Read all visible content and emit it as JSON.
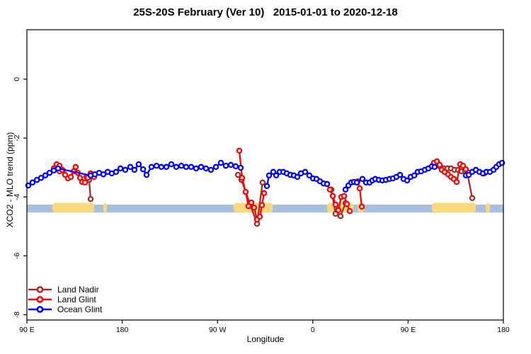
{
  "chart_data": {
    "type": "line",
    "title": "25S-20S February (Ver 10)   2015-01-01 to 2020-12-18",
    "xlabel": "Longitude",
    "ylabel": "XCO2 - MLO trend (ppm)",
    "x_axis": {
      "min": 0,
      "max": 450,
      "unit": "degrees eastward from 90E (axis wraps past the dateline and prime meridian)",
      "ticks": [
        {
          "pos": 0,
          "label": "90 E"
        },
        {
          "pos": 90,
          "label": "180"
        },
        {
          "pos": 180,
          "label": "90 W"
        },
        {
          "pos": 270,
          "label": "0"
        },
        {
          "pos": 360,
          "label": "90 E"
        },
        {
          "pos": 450,
          "label": "180"
        }
      ]
    },
    "y_axis": {
      "min": -8.18,
      "max": 1.68,
      "ticks": [
        {
          "v": 0,
          "label": "0"
        },
        {
          "v": -2,
          "label": "-2"
        },
        {
          "v": -4,
          "label": "-4"
        },
        {
          "v": -6,
          "label": "-6"
        },
        {
          "v": -8,
          "label": "-8"
        }
      ]
    },
    "surface_band": {
      "ocean_color": "#A8C0DF",
      "land_color": "#F8DA7E",
      "y_top": -4.26,
      "y_bottom": -4.53,
      "land_y_top": -4.2,
      "land_segments_deg": [
        [
          24.1,
          63.5
        ],
        [
          72.2,
          75.6
        ],
        [
          195.2,
          232.0
        ],
        [
          283.5,
          308.3
        ],
        [
          312.3,
          318.3
        ],
        [
          382.5,
          424.0
        ],
        [
          433.3,
          437.3
        ]
      ]
    },
    "series": [
      {
        "name": "Land Nadir",
        "color": "#A52A2A",
        "segments": [
          [
            [
              30.8,
              -3.13
            ],
            [
              34.1,
              -3.1
            ]
          ],
          [
            [
              56.2,
              -3.32
            ],
            [
              58.8,
              -3.42
            ],
            [
              60.2,
              -4.07
            ]
          ],
          [
            [
              199.3,
              -3.25
            ],
            [
              202.6,
              -3.42
            ],
            [
              217.3,
              -4.91
            ],
            [
              222.6,
              -3.51
            ]
          ],
          [
            [
              287.5,
              -3.75
            ],
            [
              291.5,
              -4.57
            ],
            [
              296.2,
              -4.65
            ],
            [
              300.9,
              -4.21
            ]
          ],
          [
            [
              390.5,
              -2.98
            ],
            [
              393.8,
              -3.03
            ],
            [
              397.2,
              -3.03
            ],
            [
              400.5,
              -3.03
            ],
            [
              403.8,
              -3.08
            ],
            [
              407.2,
              -3.08
            ],
            [
              410.5,
              -3.13
            ],
            [
              413.9,
              -3.13
            ],
            [
              415.9,
              -3.18
            ],
            [
              420.6,
              -4.04
            ]
          ]
        ]
      },
      {
        "name": "Land Glint",
        "color": "#FF0000",
        "segments": [
          [
            [
              25.4,
              -3.03
            ],
            [
              28.1,
              -2.89
            ],
            [
              30.8,
              -2.94
            ],
            [
              33.4,
              -3.08
            ],
            [
              36.1,
              -3.25
            ],
            [
              38.8,
              -3.37
            ],
            [
              41.5,
              -3.32
            ],
            [
              44.1,
              -3.13
            ],
            [
              46.1,
              -2.98
            ],
            [
              48.1,
              -3.18
            ],
            [
              50.2,
              -3.35
            ],
            [
              52.2,
              -3.49
            ],
            [
              54.8,
              -3.51
            ],
            [
              57.5,
              -3.35
            ],
            [
              60.2,
              -3.2
            ],
            [
              63.5,
              -3.32
            ]
          ],
          [
            [
              200.6,
              -2.43
            ],
            [
              203.3,
              -3.35
            ],
            [
              206.6,
              -3.83
            ],
            [
              209.3,
              -4.31
            ],
            [
              212.0,
              -4.19
            ],
            [
              214.6,
              -4.36
            ],
            [
              217.3,
              -4.77
            ],
            [
              220.0,
              -4.67
            ],
            [
              222.0,
              -4.28
            ],
            [
              224.0,
              -3.87
            ]
          ],
          [
            [
              283.5,
              -3.56
            ],
            [
              286.2,
              -3.75
            ],
            [
              288.9,
              -3.97
            ],
            [
              291.5,
              -4.26
            ],
            [
              294.2,
              -4.45
            ],
            [
              296.9,
              -4.0
            ],
            [
              299.6,
              -3.97
            ],
            [
              302.2,
              -4.24
            ],
            [
              304.9,
              -4.48
            ]
          ],
          [
            [
              312.3,
              -3.47
            ],
            [
              314.3,
              -3.71
            ],
            [
              316.3,
              -4.33
            ]
          ],
          [
            [
              384.5,
              -2.84
            ],
            [
              387.2,
              -2.79
            ],
            [
              389.8,
              -2.91
            ],
            [
              391.8,
              -3.08
            ],
            [
              394.5,
              -3.15
            ],
            [
              397.8,
              -3.23
            ],
            [
              400.5,
              -3.32
            ],
            [
              403.2,
              -3.39
            ],
            [
              405.9,
              -3.49
            ],
            [
              409.2,
              -2.89
            ],
            [
              411.9,
              -2.94
            ],
            [
              414.6,
              -3.06
            ],
            [
              417.3,
              -3.18
            ]
          ],
          [
            [
              432.0,
              -3.2
            ]
          ]
        ]
      },
      {
        "name": "Ocean Glint",
        "color": "#0000FF",
        "segments": [
          [
            [
              1.3,
              -3.61
            ],
            [
              5.3,
              -3.51
            ],
            [
              9.4,
              -3.42
            ],
            [
              13.4,
              -3.35
            ],
            [
              17.4,
              -3.27
            ],
            [
              21.4,
              -3.18
            ],
            [
              25.4,
              -3.1
            ],
            [
              29.4,
              -3.03
            ],
            [
              60.2,
              -3.27
            ],
            [
              64.2,
              -3.23
            ],
            [
              68.2,
              -3.18
            ],
            [
              72.2,
              -3.23
            ],
            [
              76.2,
              -3.15
            ],
            [
              80.2,
              -3.2
            ],
            [
              84.2,
              -3.15
            ],
            [
              88.3,
              -3.03
            ],
            [
              92.9,
              -3.08
            ],
            [
              97.6,
              -2.98
            ],
            [
              101.6,
              -3.08
            ],
            [
              105.6,
              -2.89
            ],
            [
              109.7,
              -3.06
            ],
            [
              113.0,
              -3.25
            ],
            [
              117.7,
              -2.98
            ],
            [
              122.4,
              -2.94
            ],
            [
              127.0,
              -2.98
            ],
            [
              131.7,
              -2.98
            ],
            [
              136.4,
              -2.89
            ],
            [
              141.1,
              -2.98
            ],
            [
              145.8,
              -2.94
            ],
            [
              150.4,
              -2.98
            ],
            [
              155.1,
              -2.98
            ],
            [
              159.8,
              -3.03
            ],
            [
              164.5,
              -2.98
            ],
            [
              169.2,
              -3.03
            ],
            [
              173.8,
              -3.08
            ],
            [
              178.5,
              -2.98
            ],
            [
              183.2,
              -2.84
            ],
            [
              187.9,
              -2.94
            ],
            [
              192.6,
              -2.91
            ],
            [
              197.2,
              -2.96
            ],
            [
              201.9,
              -3.01
            ]
          ],
          [
            [
              226.7,
              -3.63
            ],
            [
              228.7,
              -3.27
            ],
            [
              232.7,
              -3.15
            ],
            [
              235.4,
              -3.27
            ],
            [
              238.7,
              -3.15
            ],
            [
              242.1,
              -3.15
            ],
            [
              245.4,
              -3.2
            ],
            [
              248.8,
              -3.25
            ],
            [
              252.1,
              -3.27
            ],
            [
              255.4,
              -3.32
            ],
            [
              258.8,
              -3.2
            ],
            [
              262.8,
              -3.15
            ],
            [
              266.8,
              -3.27
            ],
            [
              270.2,
              -3.37
            ],
            [
              273.5,
              -3.39
            ],
            [
              276.8,
              -3.47
            ],
            [
              280.2,
              -3.54
            ],
            [
              283.5,
              -3.56
            ]
          ],
          [
            [
              300.9,
              -3.75
            ],
            [
              303.6,
              -3.61
            ],
            [
              306.3,
              -3.51
            ],
            [
              308.9,
              -3.49
            ],
            [
              311.6,
              -3.51
            ],
            [
              316.9,
              -3.39
            ],
            [
              320.3,
              -3.51
            ],
            [
              323.6,
              -3.51
            ],
            [
              326.3,
              -3.44
            ],
            [
              329.0,
              -3.39
            ],
            [
              332.3,
              -3.42
            ],
            [
              335.7,
              -3.44
            ],
            [
              339.0,
              -3.42
            ],
            [
              342.4,
              -3.39
            ],
            [
              345.7,
              -3.37
            ],
            [
              349.0,
              -3.32
            ],
            [
              352.4,
              -3.25
            ],
            [
              355.7,
              -3.39
            ],
            [
              359.1,
              -3.44
            ],
            [
              362.4,
              -3.32
            ],
            [
              365.8,
              -3.27
            ],
            [
              369.1,
              -3.15
            ],
            [
              372.4,
              -3.13
            ],
            [
              375.8,
              -3.08
            ],
            [
              379.1,
              -3.03
            ],
            [
              382.5,
              -2.96
            ],
            [
              385.1,
              -2.98
            ]
          ],
          [
            [
              414.6,
              -3.27
            ],
            [
              417.3,
              -3.25
            ],
            [
              420.6,
              -3.15
            ],
            [
              424.0,
              -3.08
            ],
            [
              427.3,
              -3.15
            ],
            [
              430.6,
              -3.2
            ],
            [
              434.0,
              -3.15
            ],
            [
              437.3,
              -3.15
            ],
            [
              440.7,
              -3.08
            ],
            [
              443.3,
              -2.98
            ],
            [
              446.0,
              -2.89
            ],
            [
              448.7,
              -2.84
            ]
          ]
        ]
      }
    ],
    "legend": {
      "position": "bottom-left",
      "entries": [
        "Land Nadir",
        "Land Glint",
        "Ocean Glint"
      ]
    },
    "colors": {
      "axis": "#000000",
      "background": "#FFFFFF",
      "land_nadir": "#A52A2A",
      "land_glint": "#FF0000",
      "ocean_glint": "#0000FF"
    }
  }
}
